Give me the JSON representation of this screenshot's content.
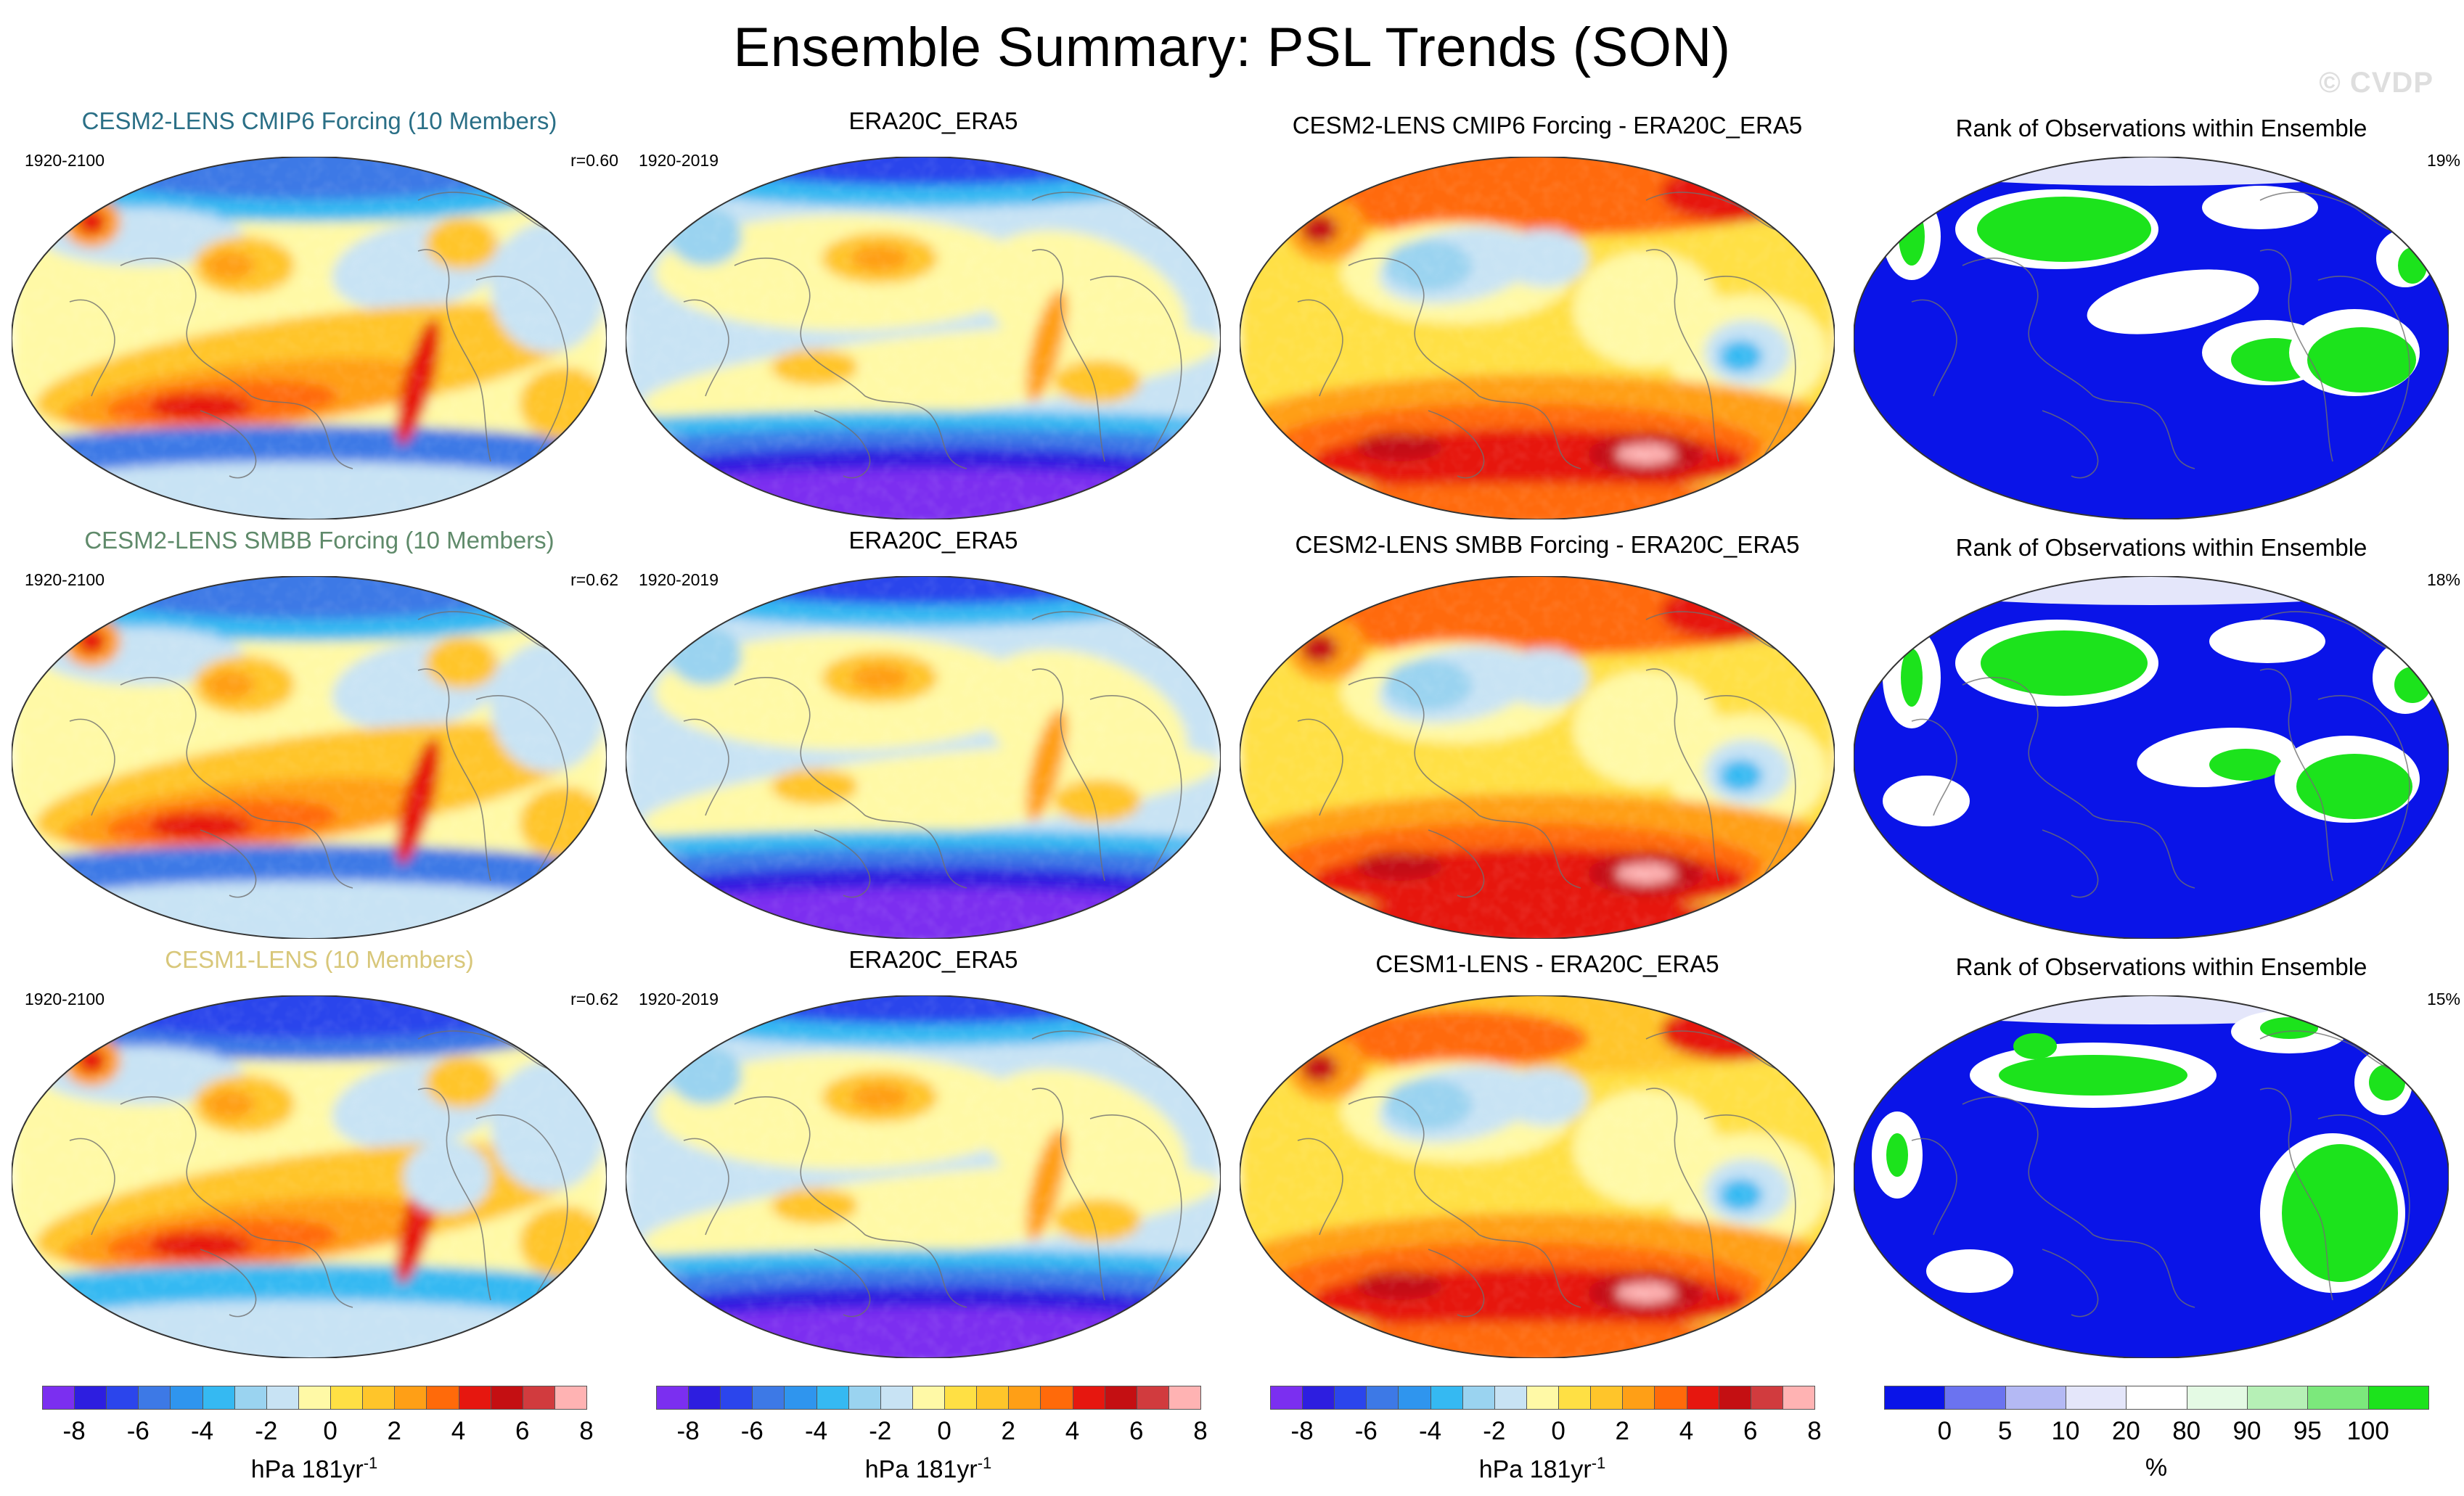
{
  "title": "Ensemble Summary: PSL Trends (SON)",
  "watermark": "© CVDP",
  "rows": [
    {
      "model": {
        "title": "CESM2-LENS CMIP6 Forcing (10 Members)",
        "title_color": "#2a6f86",
        "years": "1920-2100",
        "corr": "r=0.60"
      },
      "obs": {
        "title": "ERA20C_ERA5",
        "years": "1920-2019"
      },
      "diff": {
        "title": "CESM2-LENS CMIP6 Forcing - ERA20C_ERA5"
      },
      "rank": {
        "title": "Rank of Observations within Ensemble",
        "pct": "19%"
      }
    },
    {
      "model": {
        "title": "CESM2-LENS SMBB Forcing (10 Members)",
        "title_color": "#5f8a6a",
        "years": "1920-2100",
        "corr": "r=0.62"
      },
      "obs": {
        "title": "ERA20C_ERA5",
        "years": "1920-2019"
      },
      "diff": {
        "title": "CESM2-LENS SMBB Forcing - ERA20C_ERA5"
      },
      "rank": {
        "title": "Rank of Observations within Ensemble",
        "pct": "18%"
      }
    },
    {
      "model": {
        "title": "CESM1-LENS (10 Members)",
        "title_color": "#d8c77a",
        "years": "1920-2100",
        "corr": "r=0.62"
      },
      "obs": {
        "title": "ERA20C_ERA5",
        "years": "1920-2019"
      },
      "diff": {
        "title": "CESM1-LENS - ERA20C_ERA5"
      },
      "rank": {
        "title": "Rank of Observations within Ensemble",
        "pct": "15%"
      }
    }
  ],
  "trend_colorbar": {
    "colors": [
      "#7b2ff0",
      "#2d1ee0",
      "#2b45ec",
      "#3d79e6",
      "#2f95ee",
      "#35b9f2",
      "#9ad3f0",
      "#c8e3f4",
      "#fff9a6",
      "#ffe044",
      "#ffc52a",
      "#ff9f16",
      "#ff6a0a",
      "#e6170f",
      "#c40f12",
      "#d13b3e",
      "#ffb3b3"
    ],
    "ticks": [
      "-8",
      "-6",
      "-4",
      "-2",
      "0",
      "2",
      "4",
      "6",
      "8"
    ],
    "unit": "hPa 181yr",
    "unit_exp": "-1"
  },
  "rank_colorbar": {
    "colors": [
      "#0a14e8",
      "#6b73f0",
      "#b4b9f4",
      "#e4e6fa",
      "#ffffff",
      "#e4fae4",
      "#b6f0b6",
      "#7ce87c",
      "#1ce31c"
    ],
    "ticks": [
      "0",
      "5",
      "10",
      "20",
      "80",
      "90",
      "95",
      "100"
    ],
    "unit": "%"
  },
  "chart_data": [
    {
      "type": "heatmap",
      "title": "Ensemble Summary: PSL Trends (SON)",
      "variable": "PSL trend",
      "season": "SON",
      "units": "hPa 181yr-1",
      "levels": [
        -8,
        -7,
        -6,
        -5,
        -4,
        -3,
        -2,
        -1,
        0,
        1,
        2,
        3,
        4,
        5,
        6,
        7,
        8
      ],
      "panels": [
        "CESM2-LENS CMIP6 Forcing (10 Members)",
        "ERA20C_ERA5",
        "CESM2-LENS CMIP6 Forcing - ERA20C_ERA5",
        "CESM2-LENS SMBB Forcing (10 Members)",
        "ERA20C_ERA5",
        "CESM2-LENS SMBB Forcing - ERA20C_ERA5",
        "CESM1-LENS (10 Members)",
        "ERA20C_ERA5",
        "CESM1-LENS - ERA20C_ERA5"
      ],
      "pattern_correlations": [
        0.6,
        0.62,
        0.62
      ]
    },
    {
      "type": "heatmap",
      "title": "Rank of Observations within Ensemble",
      "units": "%",
      "levels": [
        0,
        5,
        10,
        20,
        80,
        90,
        95,
        100
      ],
      "percent_outside_range": [
        19,
        18,
        15
      ]
    }
  ]
}
